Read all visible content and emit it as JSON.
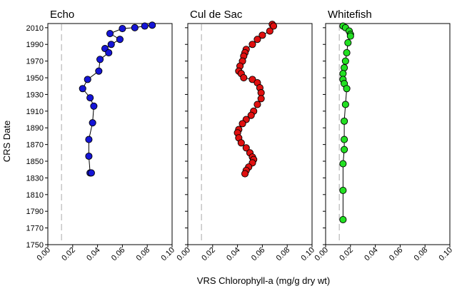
{
  "chart_data": {
    "type": "scatter",
    "ylabel": "CRS Date",
    "xlabel": "VRS Chlorophyll-a (mg/g dry wt)",
    "ylim": [
      1750,
      2015
    ],
    "yticks": [
      "1750",
      "1770",
      "1790",
      "1810",
      "1830",
      "1850",
      "1870",
      "1890",
      "1910",
      "1930",
      "1950",
      "1970",
      "1990",
      "2010"
    ],
    "xlim": [
      0,
      0.1
    ],
    "xticks": [
      "0.00",
      "0.02",
      "0.04",
      "0.06",
      "0.08",
      "0.10"
    ],
    "reference_line_x": 0.011,
    "grid": false,
    "series": [
      {
        "name": "Echo",
        "color": "#1515d6",
        "x": [
          0.084,
          0.078,
          0.07,
          0.06,
          0.05,
          0.058,
          0.051,
          0.046,
          0.049,
          0.042,
          0.041,
          0.032,
          0.028,
          0.034,
          0.037,
          0.036,
          0.033,
          0.033,
          0.034,
          0.035
        ],
        "y": [
          2013,
          2012,
          2010,
          2009,
          2003,
          1996,
          1990,
          1985,
          1980,
          1972,
          1958,
          1948,
          1937,
          1926,
          1916,
          1896,
          1876,
          1856,
          1836,
          1836
        ]
      },
      {
        "name": "Cul de Sac",
        "color": "#e01010",
        "x": [
          0.068,
          0.069,
          0.066,
          0.06,
          0.056,
          0.052,
          0.047,
          0.046,
          0.045,
          0.044,
          0.042,
          0.041,
          0.043,
          0.045,
          0.052,
          0.056,
          0.058,
          0.059,
          0.059,
          0.056,
          0.053,
          0.051,
          0.047,
          0.044,
          0.041,
          0.04,
          0.041,
          0.043,
          0.047,
          0.05,
          0.052,
          0.053,
          0.052,
          0.049,
          0.047,
          0.046
        ],
        "y": [
          2014,
          2012,
          2006,
          2001,
          1996,
          1990,
          1984,
          1980,
          1976,
          1970,
          1964,
          1958,
          1955,
          1950,
          1948,
          1944,
          1938,
          1932,
          1925,
          1918,
          1910,
          1905,
          1900,
          1895,
          1888,
          1884,
          1878,
          1872,
          1866,
          1860,
          1855,
          1852,
          1848,
          1843,
          1839,
          1835
        ]
      },
      {
        "name": "Whitefish",
        "color": "#22e022",
        "x": [
          0.014,
          0.016,
          0.019,
          0.02,
          0.02,
          0.018,
          0.017,
          0.016,
          0.015,
          0.014,
          0.014,
          0.015,
          0.017,
          0.016,
          0.015,
          0.015,
          0.015,
          0.014,
          0.014,
          0.014
        ],
        "y": [
          2012,
          2010,
          2006,
          2002,
          2000,
          1992,
          1980,
          1970,
          1962,
          1955,
          1948,
          1943,
          1937,
          1918,
          1898,
          1876,
          1864,
          1847,
          1815,
          1780
        ]
      }
    ]
  }
}
